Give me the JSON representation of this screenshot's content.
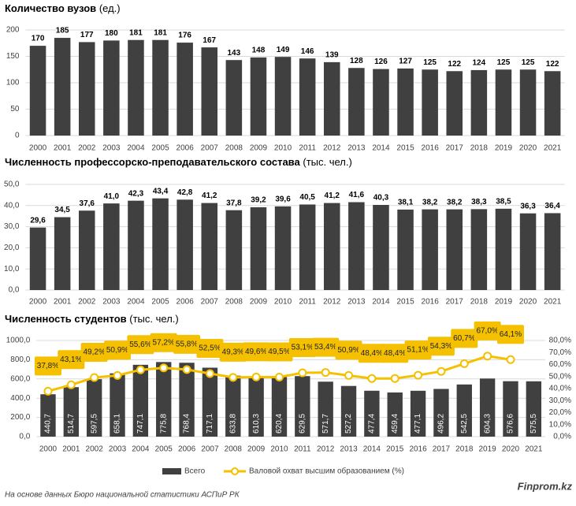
{
  "chart_data": [
    {
      "type": "bar",
      "title": "Количество вузов",
      "unit": "(ед.)",
      "color": "#404040",
      "grid": true,
      "categories": [
        "2000",
        "2001",
        "2002",
        "2003",
        "2004",
        "2005",
        "2006",
        "2007",
        "2008",
        "2009",
        "2010",
        "2011",
        "2012",
        "2013",
        "2014",
        "2015",
        "2016",
        "2017",
        "2018",
        "2019",
        "2020",
        "2021"
      ],
      "values": [
        170,
        185,
        177,
        180,
        181,
        181,
        176,
        167,
        143,
        148,
        149,
        146,
        139,
        128,
        126,
        127,
        125,
        122,
        124,
        125,
        125,
        122
      ],
      "ylim": [
        0,
        200
      ],
      "yticks": [
        0,
        50,
        100,
        150,
        200
      ]
    },
    {
      "type": "bar",
      "title": "Численность профессорско-преподавательского состава",
      "unit": "(тыс. чел.)",
      "color": "#404040",
      "grid": true,
      "categories": [
        "2000",
        "2001",
        "2002",
        "2003",
        "2004",
        "2005",
        "2006",
        "2007",
        "2008",
        "2009",
        "2010",
        "2011",
        "2012",
        "2013",
        "2014",
        "2015",
        "2016",
        "2017",
        "2018",
        "2019",
        "2020",
        "2021"
      ],
      "values": [
        29.6,
        34.5,
        37.6,
        41.0,
        42.3,
        43.4,
        42.8,
        41.2,
        37.8,
        39.2,
        39.6,
        40.5,
        41.2,
        41.6,
        40.3,
        38.1,
        38.2,
        38.2,
        38.3,
        38.5,
        36.3,
        36.4
      ],
      "value_labels": [
        "29,6",
        "34,5",
        "37,6",
        "41,0",
        "42,3",
        "43,4",
        "42,8",
        "41,2",
        "37,8",
        "39,2",
        "39,6",
        "40,5",
        "41,2",
        "41,6",
        "40,3",
        "38,1",
        "38,2",
        "38,2",
        "38,3",
        "38,5",
        "36,3",
        "36,4"
      ],
      "ylim": [
        0,
        50
      ],
      "yticks": [
        {
          "value": 0,
          "label": "0,0"
        },
        {
          "value": 10,
          "label": "10,0"
        },
        {
          "value": 20,
          "label": "20,0"
        },
        {
          "value": 30,
          "label": "30,0"
        },
        {
          "value": 40,
          "label": "40,0"
        },
        {
          "value": 50,
          "label": "50,0"
        }
      ]
    },
    {
      "type": "combo",
      "title": "Численность студентов",
      "unit": "(тыс. чел.)",
      "grid": true,
      "categories": [
        "2000",
        "2001",
        "2002",
        "2003",
        "2004",
        "2005",
        "2006",
        "2007",
        "2008",
        "2009",
        "2010",
        "2011",
        "2012",
        "2013",
        "2014",
        "2015",
        "2016",
        "2017",
        "2018",
        "2019",
        "2020",
        "2021"
      ],
      "series": [
        {
          "name": "Всего",
          "type": "bar",
          "color": "#404040",
          "values": [
            440.7,
            514.7,
            597.5,
            658.1,
            747.1,
            775.8,
            768.4,
            717.1,
            633.8,
            610.3,
            620.4,
            629.5,
            571.7,
            527.2,
            477.4,
            459.4,
            477.1,
            496.2,
            542.5,
            604.3,
            576.6,
            575.5
          ],
          "value_labels": [
            "440,7",
            "514,7",
            "597,5",
            "658,1",
            "747,1",
            "775,8",
            "768,4",
            "717,1",
            "633,8",
            "610,3",
            "620,4",
            "629,5",
            "571,7",
            "527,2",
            "477,4",
            "459,4",
            "477,1",
            "496,2",
            "542,5",
            "604,3",
            "576,6",
            "575,5"
          ]
        },
        {
          "name": "Валовой охват высшим образованием (%)",
          "type": "line",
          "axis": "y2",
          "color": "#f5c000",
          "values": [
            37.8,
            43.1,
            49.2,
            50.9,
            55.6,
            57.2,
            55.8,
            52.5,
            49.3,
            49.6,
            49.5,
            53.1,
            53.4,
            50.9,
            48.4,
            48.4,
            51.1,
            54.3,
            60.7,
            67.0,
            64.1,
            null
          ],
          "value_labels": [
            "37,8%",
            "43,1%",
            "49,2%",
            "50,9%",
            "55,6%",
            "57,2%",
            "55,8%",
            "52,5%",
            "49,3%",
            "49,6%",
            "49,5%",
            "53,1%",
            "53,4%",
            "50,9%",
            "48,4%",
            "48,4%",
            "51,1%",
            "54,3%",
            "60,7%",
            "67,0%",
            "64,1%",
            null
          ]
        }
      ],
      "ylim": [
        0,
        1000
      ],
      "yticks": [
        {
          "value": 0,
          "label": "0,0"
        },
        {
          "value": 200,
          "label": "200,0"
        },
        {
          "value": 400,
          "label": "400,0"
        },
        {
          "value": 600,
          "label": "600,0"
        },
        {
          "value": 800,
          "label": "800,0"
        },
        {
          "value": 1000,
          "label": "1000,0"
        }
      ],
      "y2lim": [
        0,
        80
      ],
      "y2ticks": [
        {
          "value": 0,
          "label": "0,0%"
        },
        {
          "value": 10,
          "label": "10,0%"
        },
        {
          "value": 20,
          "label": "20,0%"
        },
        {
          "value": 30,
          "label": "30,0%"
        },
        {
          "value": 40,
          "label": "40,0%"
        },
        {
          "value": 50,
          "label": "50,0%"
        },
        {
          "value": 60,
          "label": "60,0%"
        },
        {
          "value": 70,
          "label": "70,0%"
        },
        {
          "value": 80,
          "label": "80,0%"
        }
      ]
    }
  ],
  "source": "На основе данных Бюро национальной статистики АСПиР РК",
  "brand": "Finprom.kz"
}
